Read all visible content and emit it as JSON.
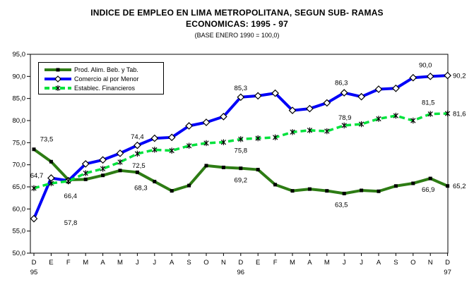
{
  "title": {
    "line1": "INDICE DE EMPLEO EN LIMA METROPOLITANA, SEGUN SUB- RAMAS",
    "line2": "ECONOMICAS: 1995 - 97",
    "subtitle": "(BASE ENERO 1990 = 100,0)"
  },
  "chart_data": {
    "type": "line",
    "grid": false,
    "legend_position": "top-left-inside",
    "categories": [
      "D",
      "E",
      "F",
      "M",
      "A",
      "M",
      "J",
      "J",
      "A",
      "S",
      "O",
      "N",
      "D",
      "E",
      "F",
      "M",
      "A",
      "M",
      "J",
      "J",
      "A",
      "S",
      "O",
      "N",
      "D"
    ],
    "year_labels": [
      {
        "index": 0,
        "text": "95"
      },
      {
        "index": 12,
        "text": "96"
      },
      {
        "index": 24,
        "text": "97"
      }
    ],
    "y_axis": {
      "min": 50,
      "max": 95,
      "step": 5,
      "tick_labels": [
        "95,0",
        "90,0",
        "85,0",
        "80,0",
        "75,0",
        "70,0",
        "65,0",
        "60,0",
        "55,0",
        "50,0"
      ]
    },
    "series": [
      {
        "name": "Prod. Alim. Beb. y Tab.",
        "color": "#2d7c14",
        "style": "solid",
        "marker": "square",
        "values": [
          73.5,
          70.7,
          66.6,
          66.7,
          67.6,
          68.7,
          68.3,
          66.2,
          64.1,
          65.3,
          69.8,
          69.4,
          69.2,
          68.9,
          65.5,
          64.1,
          64.5,
          64.1,
          63.5,
          64.2,
          64.0,
          65.2,
          65.8,
          66.9,
          65.2
        ],
        "point_labels": [
          {
            "i": 0,
            "text": "73,5",
            "dx": 18,
            "dy": -11
          },
          {
            "i": 6,
            "text": "68,3",
            "dx": 5,
            "dy": 25
          },
          {
            "i": 12,
            "text": "69,2",
            "dx": 0,
            "dy": 20
          },
          {
            "i": 18,
            "text": "63,5",
            "dx": -4,
            "dy": 19
          },
          {
            "i": 23,
            "text": "66,9",
            "dx": -3,
            "dy": 19
          }
        ],
        "end_label": "65,2"
      },
      {
        "name": "Comercio al por Menor",
        "color": "#0000f8",
        "style": "solid",
        "marker": "diamond",
        "values": [
          57.8,
          67.0,
          66.4,
          70.2,
          71.1,
          72.6,
          74.4,
          76.0,
          76.2,
          78.8,
          79.6,
          80.9,
          85.3,
          85.6,
          86.2,
          82.3,
          82.7,
          84.0,
          86.3,
          85.4,
          87.1,
          87.3,
          89.7,
          90.0,
          90.2
        ],
        "point_labels": [
          {
            "i": 0,
            "text": "57,8",
            "dx": 52,
            "dy": 9
          },
          {
            "i": 2,
            "text": "66,4",
            "dx": 3,
            "dy": 25
          },
          {
            "i": 6,
            "text": "74,4",
            "dx": 0,
            "dy": -9
          },
          {
            "i": 12,
            "text": "85,3",
            "dx": 0,
            "dy": -10
          },
          {
            "i": 18,
            "text": "86,3",
            "dx": -4,
            "dy": -11
          },
          {
            "i": 23,
            "text": "90,0",
            "dx": -7,
            "dy": -13
          }
        ],
        "end_label": "90,2"
      },
      {
        "name": "Establec. Financieros",
        "color": "#00e23c",
        "style": "dashed",
        "marker": "asterisk",
        "values": [
          64.7,
          65.8,
          66.3,
          68.1,
          69.1,
          70.6,
          72.5,
          73.4,
          73.2,
          74.3,
          74.9,
          75.1,
          75.8,
          76.0,
          76.2,
          77.4,
          77.8,
          77.6,
          78.9,
          79.2,
          80.4,
          81.1,
          80.0,
          81.5,
          81.6
        ],
        "point_labels": [
          {
            "i": 0,
            "text": "64,7",
            "dx": 4,
            "dy": -15
          },
          {
            "i": 6,
            "text": "72,5",
            "dx": 2,
            "dy": 20
          },
          {
            "i": 12,
            "text": "75,8",
            "dx": 0,
            "dy": 19
          },
          {
            "i": 18,
            "text": "78,9",
            "dx": 1,
            "dy": -8
          },
          {
            "i": 23,
            "text": "81,5",
            "dx": -3,
            "dy": -13
          }
        ],
        "end_label": "81,6"
      }
    ]
  }
}
